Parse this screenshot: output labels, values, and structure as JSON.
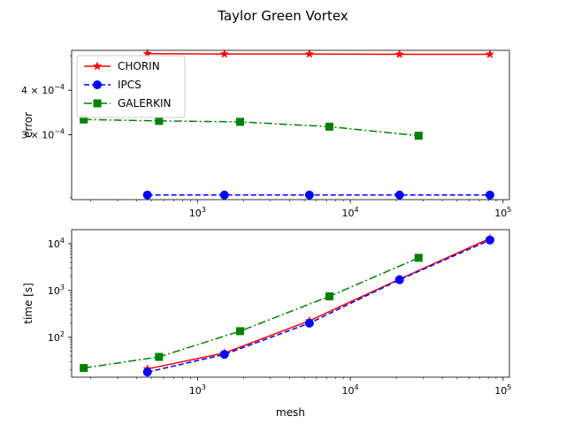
{
  "title": "Taylor Green Vortex",
  "chart_data": [
    {
      "type": "line",
      "xscale": "log",
      "yscale": "log",
      "xlim": [
        150,
        110000
      ],
      "ylim": [
        0.000197,
        0.000518
      ],
      "xlabel": "",
      "ylabel": "error",
      "xticks": [
        {
          "value": 1000,
          "base": "10",
          "exp": "3"
        },
        {
          "value": 10000,
          "base": "10",
          "exp": "4"
        },
        {
          "value": 100000,
          "base": "10",
          "exp": "5"
        }
      ],
      "yticks": [
        {
          "value": 0.0003,
          "coef": "3 × 10",
          "exp": "−4"
        },
        {
          "value": 0.0004,
          "coef": "4 × 10",
          "exp": "−4"
        }
      ],
      "legend": "upper-left",
      "series": [
        {
          "name": "CHORIN",
          "color": "#ff0000",
          "marker": "star",
          "linestyle": "solid",
          "x": [
            470,
            1500,
            5400,
            21000,
            82000
          ],
          "y": [
            0.000507,
            0.000506,
            0.000506,
            0.000505,
            0.000505
          ]
        },
        {
          "name": "IPCS",
          "color": "#0000ff",
          "marker": "circle",
          "linestyle": "dashed",
          "x": [
            470,
            1500,
            5400,
            21000,
            82000
          ],
          "y": [
            0.000203,
            0.000203,
            0.000203,
            0.000203,
            0.000203
          ]
        },
        {
          "name": "GALERKIN",
          "color": "#008000",
          "marker": "square",
          "linestyle": "dashdot",
          "x": [
            180,
            560,
            1900,
            7300,
            28000
          ],
          "y": [
            0.000331,
            0.000328,
            0.000326,
            0.000316,
            0.000298
          ]
        }
      ]
    },
    {
      "type": "line",
      "xscale": "log",
      "yscale": "log",
      "xlim": [
        150,
        110000
      ],
      "ylim": [
        14,
        20000
      ],
      "xlabel": "mesh",
      "ylabel": "time [s]",
      "xticks": [
        {
          "value": 1000,
          "base": "10",
          "exp": "3"
        },
        {
          "value": 10000,
          "base": "10",
          "exp": "4"
        },
        {
          "value": 100000,
          "base": "10",
          "exp": "5"
        }
      ],
      "yticks": [
        {
          "value": 100,
          "base": "10",
          "exp": "2"
        },
        {
          "value": 1000,
          "base": "10",
          "exp": "3"
        },
        {
          "value": 10000,
          "base": "10",
          "exp": "4"
        }
      ],
      "series": [
        {
          "name": "CHORIN",
          "color": "#ff0000",
          "marker": "star",
          "linestyle": "solid",
          "x": [
            470,
            1500,
            5400,
            21000,
            82000
          ],
          "y": [
            21,
            46,
            225,
            1750,
            13000
          ]
        },
        {
          "name": "IPCS",
          "color": "#0000ff",
          "marker": "circle",
          "linestyle": "dashed",
          "x": [
            470,
            1500,
            5400,
            21000,
            82000
          ],
          "y": [
            18,
            43,
            200,
            1700,
            12000
          ]
        },
        {
          "name": "GALERKIN",
          "color": "#008000",
          "marker": "square",
          "linestyle": "dashdot",
          "x": [
            180,
            560,
            1900,
            7300,
            28000
          ],
          "y": [
            22,
            38,
            135,
            750,
            5000
          ]
        }
      ]
    }
  ]
}
